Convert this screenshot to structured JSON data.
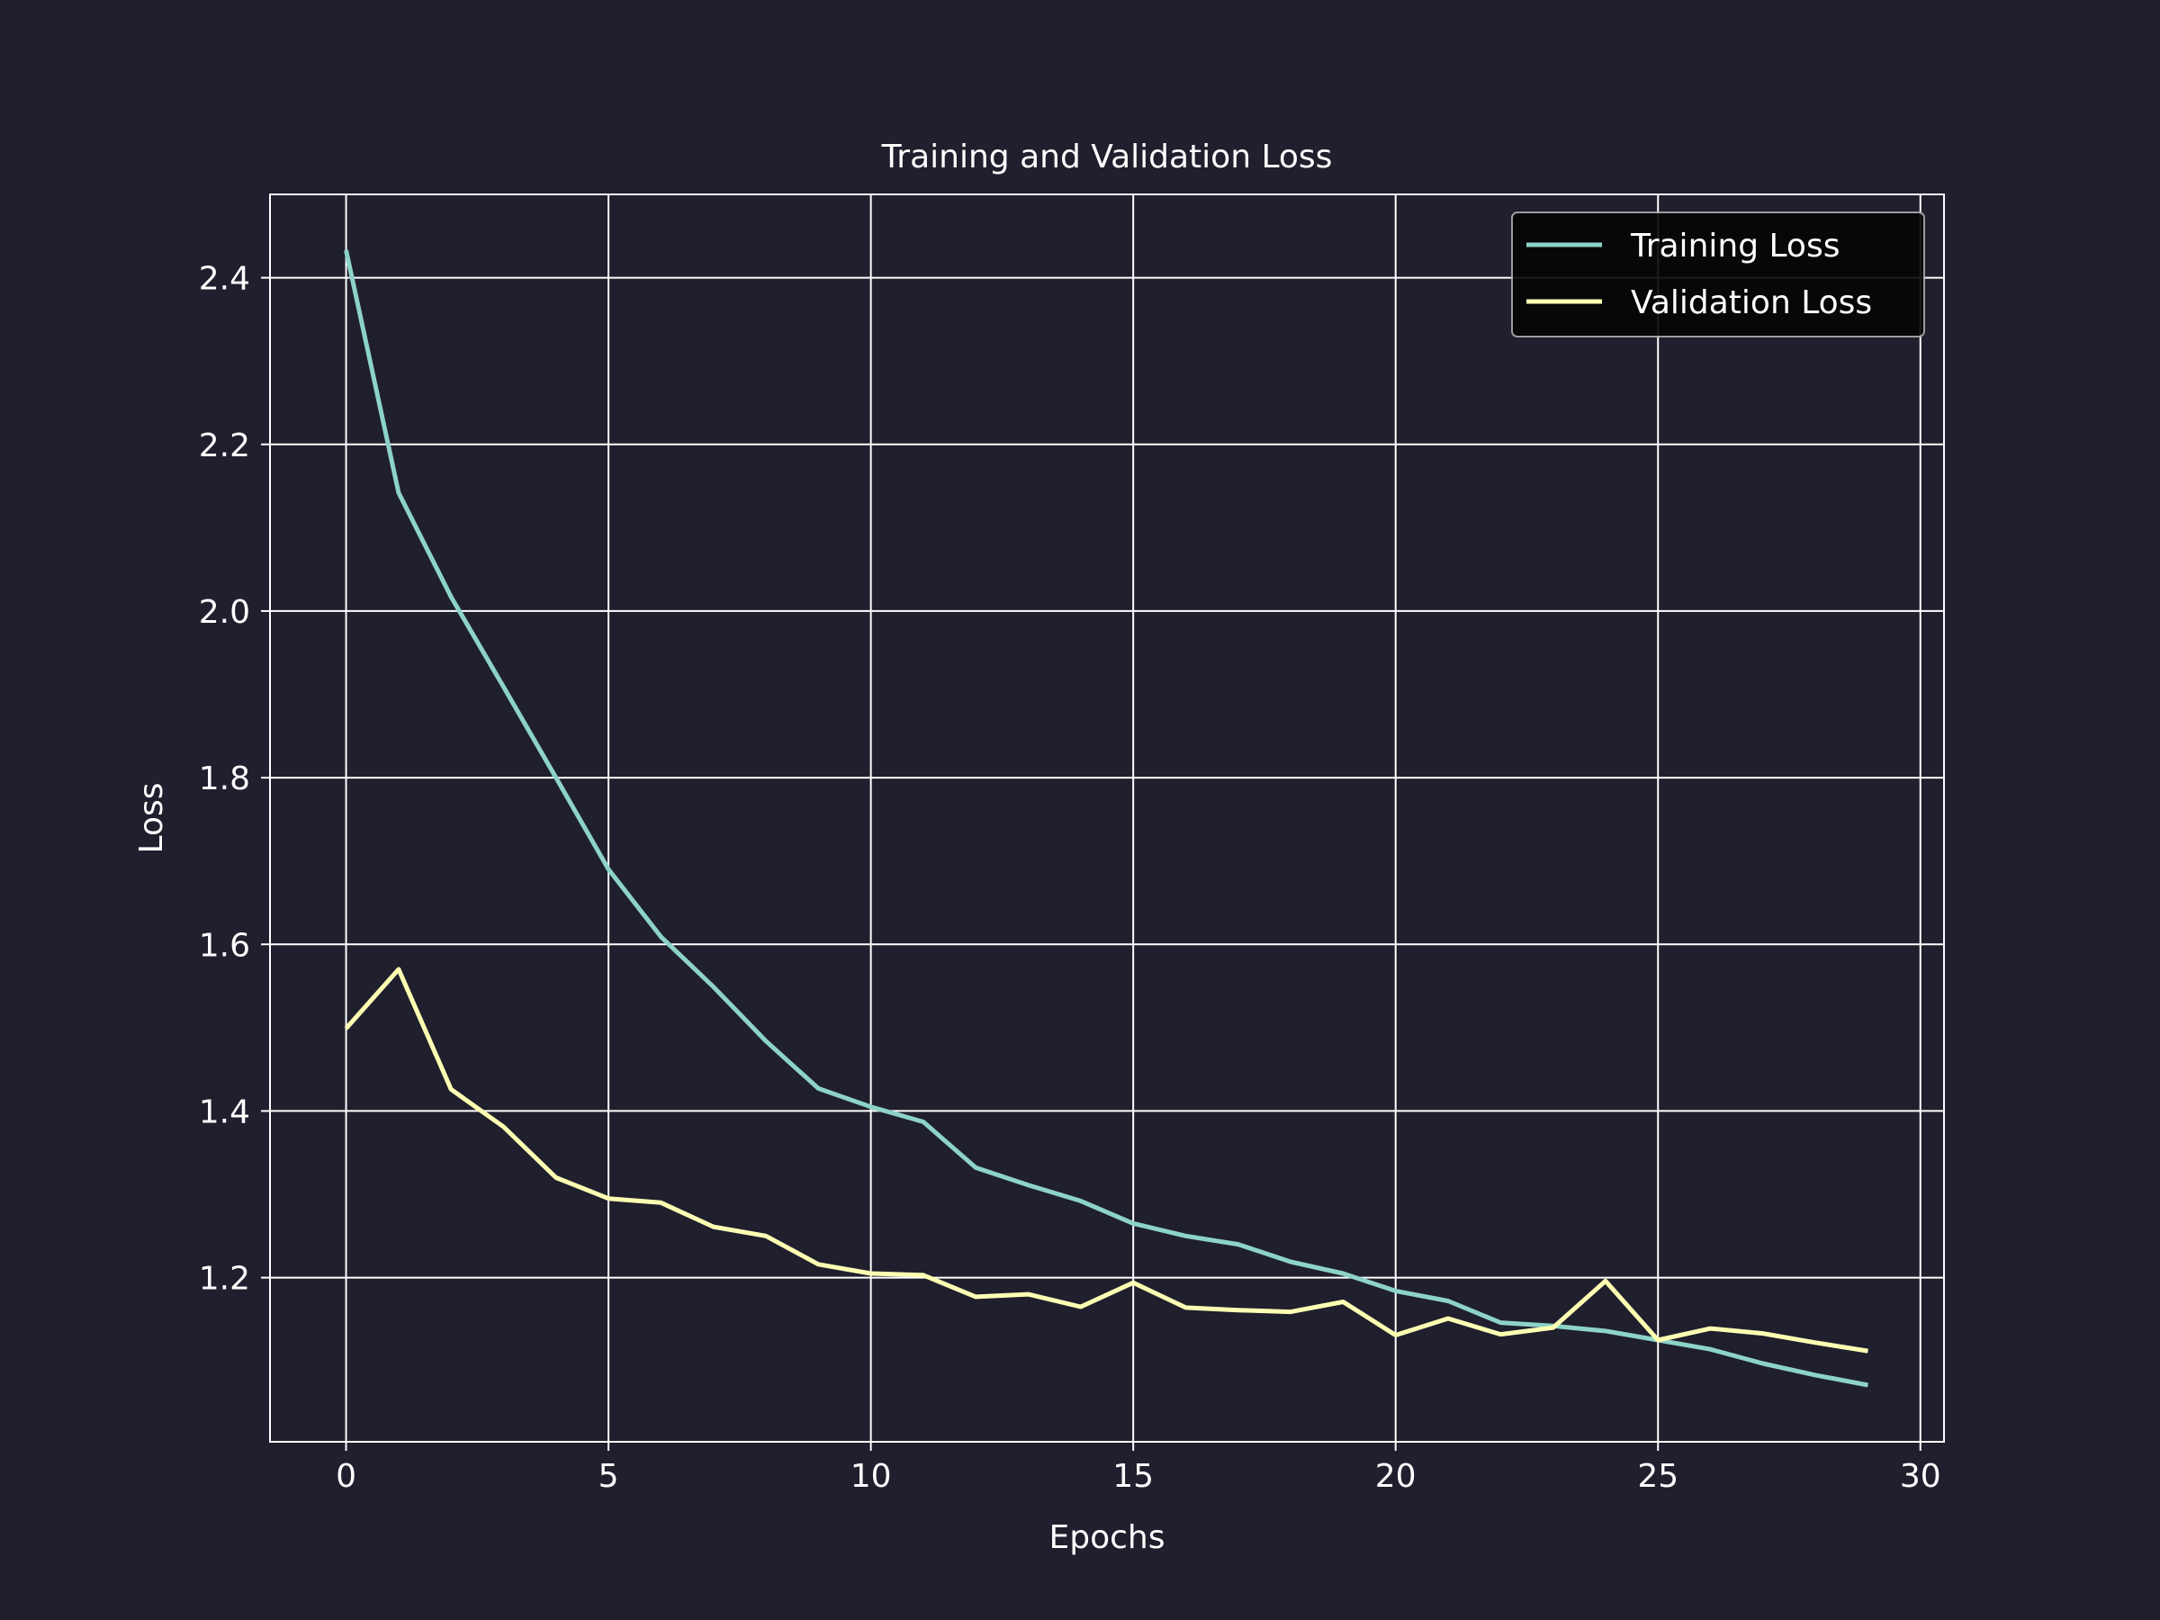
{
  "chart_data": {
    "type": "line",
    "title": "Training and Validation Loss",
    "xlabel": "Epochs",
    "ylabel": "Loss",
    "xlim": [
      -1.45,
      30.45
    ],
    "ylim": [
      1.003,
      2.5
    ],
    "xticks": [
      0,
      5,
      10,
      15,
      20,
      25,
      30
    ],
    "yticks": [
      1.2,
      1.4,
      1.6,
      1.8,
      2.0,
      2.2,
      2.4
    ],
    "grid": true,
    "legend_position": "top-right",
    "x": [
      0,
      1,
      2,
      3,
      4,
      5,
      6,
      7,
      8,
      9,
      10,
      11,
      12,
      13,
      14,
      15,
      16,
      17,
      18,
      19,
      20,
      21,
      22,
      23,
      24,
      25,
      26,
      27,
      28,
      29
    ],
    "series": [
      {
        "name": "Training Loss",
        "color": "#8dd3c7",
        "values": [
          2.433,
          2.142,
          2.017,
          1.909,
          1.8,
          1.69,
          1.609,
          1.549,
          1.484,
          1.427,
          1.405,
          1.387,
          1.332,
          1.311,
          1.292,
          1.265,
          1.25,
          1.24,
          1.219,
          1.205,
          1.184,
          1.172,
          1.146,
          1.142,
          1.136,
          1.125,
          1.114,
          1.097,
          1.083,
          1.071
        ]
      },
      {
        "name": "Validation Loss",
        "color": "#ffffb3",
        "values": [
          1.499,
          1.57,
          1.426,
          1.381,
          1.32,
          1.295,
          1.29,
          1.261,
          1.25,
          1.216,
          1.205,
          1.203,
          1.177,
          1.18,
          1.165,
          1.194,
          1.164,
          1.161,
          1.159,
          1.171,
          1.131,
          1.151,
          1.132,
          1.14,
          1.196,
          1.125,
          1.139,
          1.133,
          1.122,
          1.112
        ]
      }
    ]
  },
  "colors": {
    "background": "#1f1f2e",
    "foreground": "#ffffff",
    "legend_background": "#050505"
  }
}
